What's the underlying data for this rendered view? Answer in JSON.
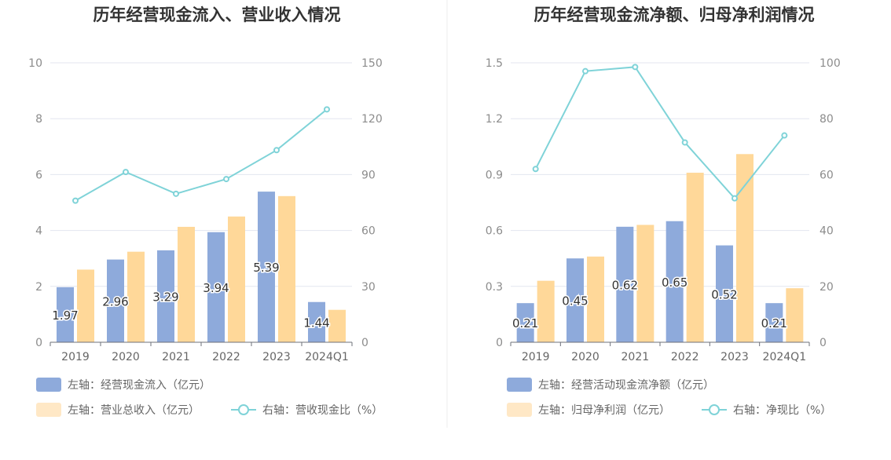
{
  "chart_data": [
    {
      "type": "bar",
      "title": "历年经营现金流入、营业收入情况",
      "categories": [
        "2019",
        "2020",
        "2021",
        "2022",
        "2023",
        "2024Q1"
      ],
      "y_left": {
        "ticks": [
          "0",
          "2",
          "4",
          "6",
          "8",
          "10"
        ],
        "ylim": [
          0,
          10
        ]
      },
      "y_right": {
        "ticks": [
          "0",
          "30",
          "60",
          "90",
          "120",
          "150"
        ],
        "ylim": [
          0,
          150
        ]
      },
      "series": [
        {
          "name": "左轴：经营现金流入（亿元）",
          "axis": "left",
          "kind": "bar",
          "color": "#8eaadb",
          "values": [
            1.97,
            2.96,
            3.29,
            3.94,
            5.39,
            1.44
          ],
          "labels": [
            "1.97",
            "2.96",
            "3.29",
            "3.94",
            "5.39",
            "1.44"
          ]
        },
        {
          "name": "左轴：营业总收入（亿元）",
          "axis": "left",
          "kind": "bar",
          "color": "#ffd899",
          "values": [
            2.6,
            3.24,
            4.13,
            4.5,
            5.23,
            1.16
          ]
        },
        {
          "name": "右轴：营收现金比（%）",
          "axis": "right",
          "kind": "line",
          "color": "#7fd3d8",
          "values": [
            76,
            91.4,
            79.7,
            87.6,
            103.1,
            125
          ]
        }
      ],
      "grid": true,
      "legend_position": "bottom"
    },
    {
      "type": "bar",
      "title": "历年经营现金流净额、归母净利润情况",
      "categories": [
        "2019",
        "2020",
        "2021",
        "2022",
        "2023",
        "2024Q1"
      ],
      "y_left": {
        "ticks": [
          "0",
          "0.3",
          "0.6",
          "0.9",
          "1.2",
          "1.5"
        ],
        "ylim": [
          0,
          1.5
        ]
      },
      "y_right": {
        "ticks": [
          "0",
          "20",
          "40",
          "60",
          "80",
          "100"
        ],
        "ylim": [
          0,
          100
        ]
      },
      "series": [
        {
          "name": "左轴：经营活动现金流净额（亿元）",
          "axis": "left",
          "kind": "bar",
          "color": "#8eaadb",
          "values": [
            0.21,
            0.45,
            0.62,
            0.65,
            0.52,
            0.21
          ],
          "labels": [
            "0.21",
            "0.45",
            "0.62",
            "0.65",
            "0.52",
            "0.21"
          ]
        },
        {
          "name": "左轴：归母净利润（亿元）",
          "axis": "left",
          "kind": "bar",
          "color": "#ffd899",
          "values": [
            0.33,
            0.46,
            0.63,
            0.91,
            1.01,
            0.29
          ]
        },
        {
          "name": "右轴：净现比（%）",
          "axis": "right",
          "kind": "line",
          "color": "#7fd3d8",
          "values": [
            62,
            97,
            98.5,
            71.5,
            51.5,
            74
          ]
        }
      ],
      "grid": true,
      "legend_position": "bottom"
    }
  ]
}
